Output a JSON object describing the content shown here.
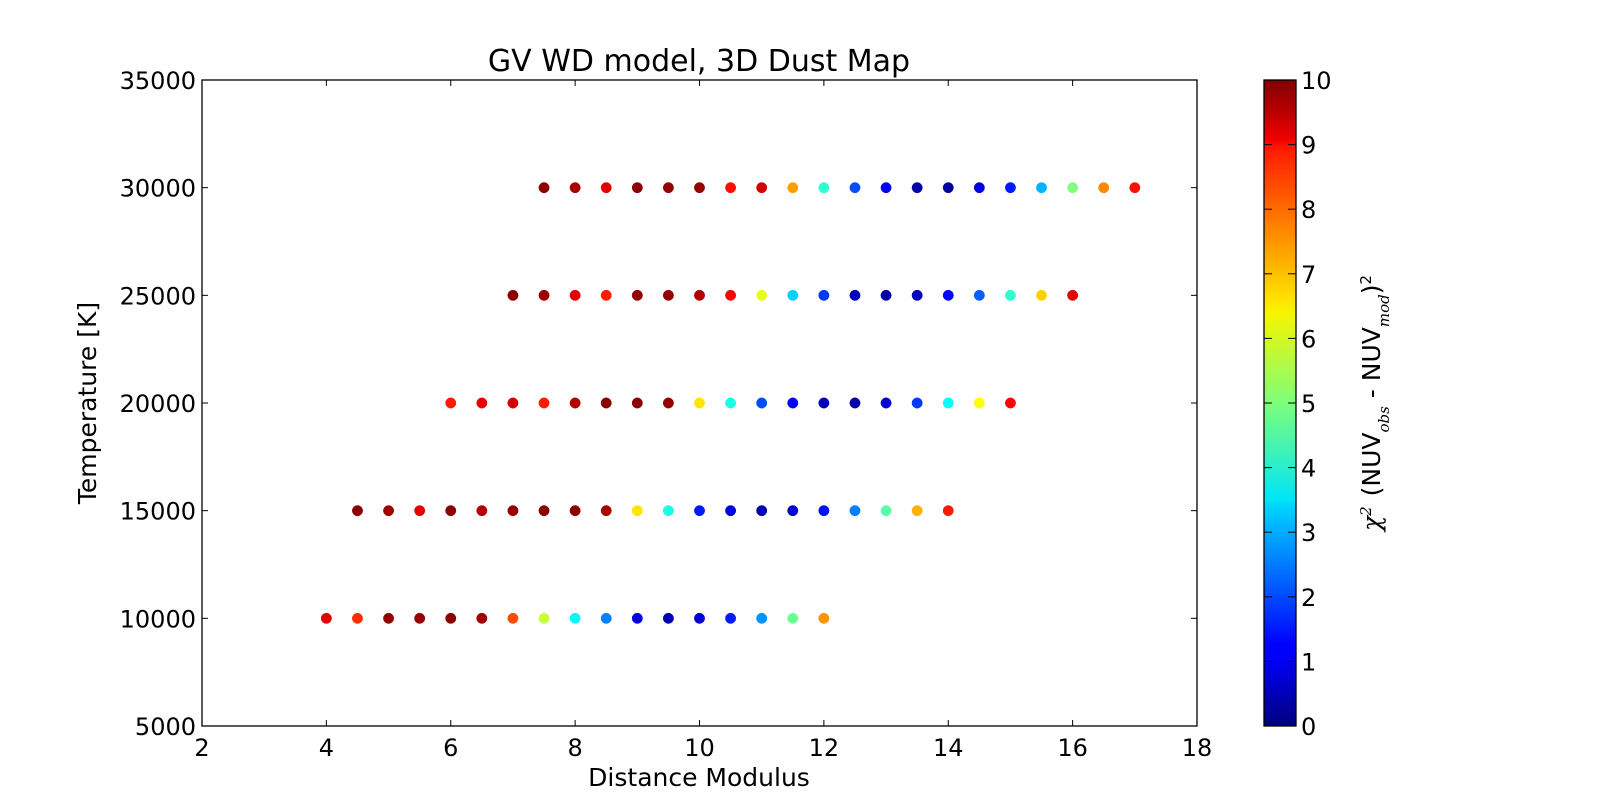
{
  "chart_data": {
    "type": "scatter",
    "title": "GV WD model, 3D Dust Map",
    "xlabel": "Distance Modulus",
    "ylabel": "Temperature [K]",
    "xlim": [
      2,
      18
    ],
    "ylim": [
      5000,
      35000
    ],
    "xticks": [
      2,
      4,
      6,
      8,
      10,
      12,
      14,
      16,
      18
    ],
    "yticks": [
      5000,
      10000,
      15000,
      20000,
      25000,
      30000,
      35000
    ],
    "grid": false,
    "colormap": "jet",
    "colorbar": {
      "label_chi": "χ",
      "label_sup": "2",
      "label_nuv1": "(NUV",
      "label_obs": "obs",
      "label_minus": " - NUV",
      "label_mod": "mod",
      "label_close": ")",
      "label_close_sup": "2",
      "range": [
        0,
        10
      ],
      "ticks": [
        0,
        1,
        2,
        3,
        4,
        5,
        6,
        7,
        8,
        9,
        10
      ]
    },
    "series": [
      {
        "temperature": 10000,
        "x": [
          4,
          4.5,
          5,
          5.5,
          6,
          6.5,
          7,
          7.5,
          8,
          8.5,
          9,
          9.5,
          10,
          10.5,
          11,
          11.5,
          12
        ],
        "chi2": [
          9.0,
          8.3,
          9.8,
          9.8,
          9.9,
          9.7,
          8.0,
          5.7,
          3.7,
          2.5,
          1.0,
          0.5,
          0.9,
          1.5,
          2.7,
          4.8,
          7.3
        ]
      },
      {
        "temperature": 15000,
        "x": [
          4.5,
          5,
          5.5,
          6,
          6.5,
          7,
          7.5,
          8,
          8.5,
          9,
          9.5,
          10,
          10.5,
          11,
          11.5,
          12,
          12.5,
          13,
          13.5,
          14
        ],
        "chi2": [
          9.9,
          9.7,
          9.0,
          9.9,
          9.5,
          9.8,
          9.9,
          9.9,
          9.6,
          6.5,
          4.0,
          1.5,
          1.0,
          0.5,
          0.8,
          1.4,
          2.5,
          4.6,
          7.0,
          8.5
        ]
      },
      {
        "temperature": 20000,
        "x": [
          6,
          6.5,
          7,
          7.5,
          8,
          8.5,
          9,
          9.5,
          10,
          10.5,
          11,
          11.5,
          12,
          12.5,
          13,
          13.5,
          14,
          14.5,
          15
        ],
        "chi2": [
          8.5,
          9.0,
          9.2,
          8.5,
          9.5,
          9.9,
          9.9,
          9.8,
          6.5,
          4.0,
          2.0,
          1.2,
          0.5,
          0.4,
          0.8,
          1.8,
          3.8,
          6.2,
          8.7
        ]
      },
      {
        "temperature": 25000,
        "x": [
          7,
          7.5,
          8,
          8.5,
          9,
          9.5,
          10,
          10.5,
          11,
          11.5,
          12,
          12.5,
          13,
          13.5,
          14,
          14.5,
          15,
          15.5,
          16
        ],
        "chi2": [
          9.9,
          9.7,
          9.0,
          8.5,
          9.8,
          9.8,
          9.5,
          8.7,
          6.0,
          3.3,
          1.8,
          0.6,
          0.4,
          0.6,
          1.3,
          2.2,
          4.2,
          6.7,
          9.0
        ]
      },
      {
        "temperature": 30000,
        "x": [
          7.5,
          8,
          8.5,
          9,
          9.5,
          10,
          10.5,
          11,
          11.5,
          12,
          12.5,
          13,
          13.5,
          14,
          14.5,
          15,
          15.5,
          16,
          16.5,
          17
        ],
        "chi2": [
          9.9,
          9.6,
          9.0,
          9.9,
          9.8,
          9.8,
          8.6,
          9.2,
          7.2,
          4.2,
          2.0,
          1.2,
          0.4,
          0.3,
          1.0,
          1.5,
          3.0,
          5.0,
          7.4,
          8.6
        ]
      }
    ]
  }
}
